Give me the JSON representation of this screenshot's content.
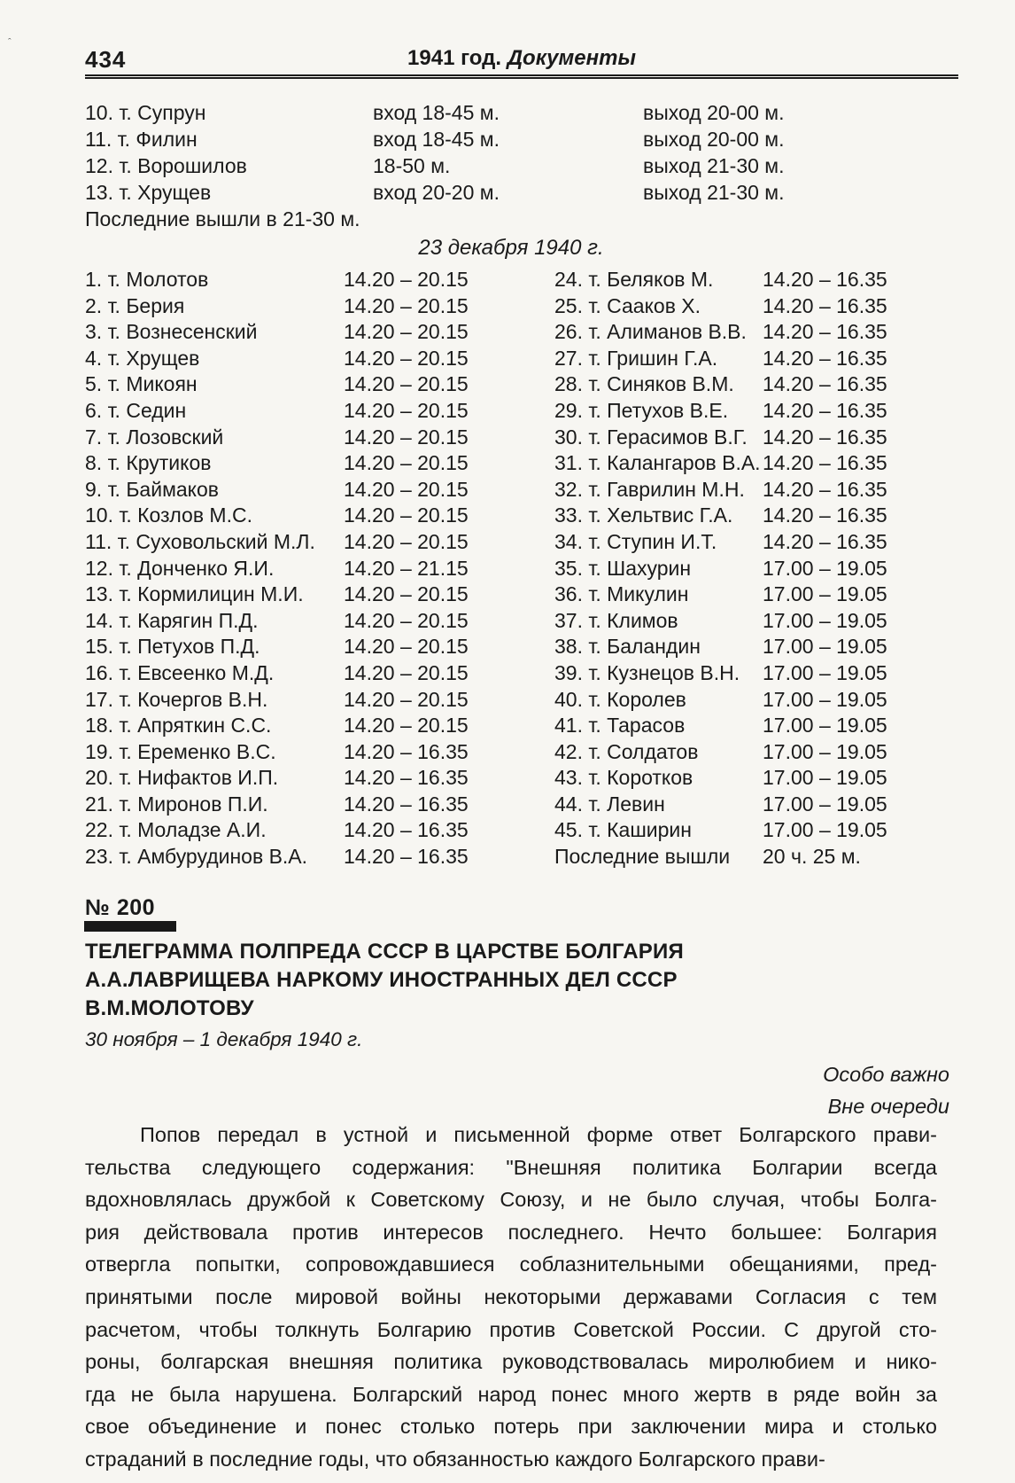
{
  "colors": {
    "paper": "#f7f6f2",
    "ink": "#1a1a1a",
    "bar": "#181818"
  },
  "corner_mark": "ˆ",
  "header": {
    "page_number": "434",
    "running_title_year": "1941 год.",
    "running_title_word": "Документы"
  },
  "session1": {
    "rows": [
      {
        "name": "10. т. Супрун",
        "in": "вход 18-45 м.",
        "out": "выход 20-00 м."
      },
      {
        "name": "11. т. Филин",
        "in": "вход 18-45 м.",
        "out": "выход 20-00 м."
      },
      {
        "name": "12. т. Ворошилов",
        "in": "18-50 м.",
        "out": "выход 21-30 м."
      },
      {
        "name": "13. т. Хрущев",
        "in": "вход 20-20 м.",
        "out": "выход 21-30 м."
      }
    ],
    "footer": "Последние вышли в 21-30 м."
  },
  "session2": {
    "date_heading": "23 декабря 1940 г.",
    "left_rows": [
      {
        "name": "1. т. Молотов",
        "time": "14.20 – 20.15"
      },
      {
        "name": "2. т. Берия",
        "time": "14.20 – 20.15"
      },
      {
        "name": "3. т. Вознесенский",
        "time": "14.20 – 20.15"
      },
      {
        "name": "4. т. Хрущев",
        "time": "14.20 – 20.15"
      },
      {
        "name": "5. т. Микоян",
        "time": "14.20 – 20.15"
      },
      {
        "name": "6. т. Седин",
        "time": "14.20 – 20.15"
      },
      {
        "name": "7. т. Лозовский",
        "time": "14.20 – 20.15"
      },
      {
        "name": "8. т. Крутиков",
        "time": "14.20 – 20.15"
      },
      {
        "name": "9. т. Баймаков",
        "time": "14.20 – 20.15"
      },
      {
        "name": "10. т. Козлов М.С.",
        "time": "14.20 – 20.15"
      },
      {
        "name": "11. т. Суховольский М.Л.",
        "time": "14.20 – 20.15"
      },
      {
        "name": "12. т. Донченко Я.И.",
        "time": "14.20 – 21.15"
      },
      {
        "name": "13. т. Кормилицин М.И.",
        "time": "14.20 – 20.15"
      },
      {
        "name": "14. т. Карягин П.Д.",
        "time": "14.20 – 20.15"
      },
      {
        "name": "15. т. Петухов П.Д.",
        "time": "14.20 – 20.15"
      },
      {
        "name": "16. т. Евсеенко М.Д.",
        "time": "14.20 – 20.15"
      },
      {
        "name": "17. т. Кочергов В.Н.",
        "time": "14.20 – 20.15"
      },
      {
        "name": "18. т. Апряткин С.С.",
        "time": "14.20 – 20.15"
      },
      {
        "name": "19. т. Еременко В.С.",
        "time": "14.20 – 16.35"
      },
      {
        "name": "20. т. Нифактов И.П.",
        "time": "14.20 – 16.35"
      },
      {
        "name": "21. т. Миронов П.И.",
        "time": "14.20 – 16.35"
      },
      {
        "name": "22. т. Моладзе А.И.",
        "time": "14.20 – 16.35"
      },
      {
        "name": "23. т. Амбурудинов В.А.",
        "time": "14.20 – 16.35"
      }
    ],
    "right_rows": [
      {
        "name": "24. т. Беляков М.",
        "time": "14.20 – 16.35"
      },
      {
        "name": "25. т. Сааков Х.",
        "time": "14.20 – 16.35"
      },
      {
        "name": "26. т. Алиманов В.В.",
        "time": "14.20 – 16.35"
      },
      {
        "name": "27. т. Гришин Г.А.",
        "time": "14.20 – 16.35"
      },
      {
        "name": "28. т. Синяков В.М.",
        "time": "14.20 – 16.35"
      },
      {
        "name": "29. т. Петухов В.Е.",
        "time": "14.20 – 16.35"
      },
      {
        "name": "30. т. Герасимов В.Г.",
        "time": "14.20 – 16.35"
      },
      {
        "name": "31. т. Калангаров В.А.",
        "time": "14.20 – 16.35"
      },
      {
        "name": "32. т. Гаврилин М.Н.",
        "time": "14.20 – 16.35"
      },
      {
        "name": "33. т. Хельтвис Г.А.",
        "time": "14.20 – 16.35"
      },
      {
        "name": "34. т. Ступин И.Т.",
        "time": "14.20 – 16.35"
      },
      {
        "name": "35. т. Шахурин",
        "time": "17.00 – 19.05"
      },
      {
        "name": "36. т. Микулин",
        "time": "17.00 – 19.05"
      },
      {
        "name": "37. т. Климов",
        "time": "17.00 – 19.05"
      },
      {
        "name": "38. т. Баландин",
        "time": "17.00 – 19.05"
      },
      {
        "name": "39. т. Кузнецов В.Н.",
        "time": "17.00 – 19.05"
      },
      {
        "name": "40. т. Королев",
        "time": "17.00 – 19.05"
      },
      {
        "name": "41. т. Тарасов",
        "time": "17.00 – 19.05"
      },
      {
        "name": "42. т. Солдатов",
        "time": "17.00 – 19.05"
      },
      {
        "name": "43. т. Коротков",
        "time": "17.00 – 19.05"
      },
      {
        "name": "44. т. Левин",
        "time": "17.00 – 19.05"
      },
      {
        "name": "45. т. Каширин",
        "time": "17.00 – 19.05"
      },
      {
        "name": "Последние вышли",
        "time": "20 ч. 25 м."
      }
    ]
  },
  "doc200": {
    "number": "№ 200",
    "title_lines": [
      "ТЕЛЕГРАММА ПОЛПРЕДА СССР В ЦАРСТВЕ  БОЛГАРИЯ",
      "А.А.ЛАВРИЩЕВА НАРКОМУ ИНОСТРАННЫХ ДЕЛ СССР",
      "В.М.МОЛОТОВУ"
    ],
    "date_line": "30 ноября – 1 декабря  1940 г.",
    "annotations": [
      "Особо важно",
      "Вне очереди"
    ],
    "body_lines": [
      "Попов передал в устной и письменной форме ответ Болгарского прави-",
      "тельства следующего содержания: \"Внешняя политика Болгарии всегда",
      "вдохновлялась дружбой к Советскому Союзу, и не было случая, чтобы Болга-",
      "рия действовала против интересов последнего. Нечто большее: Болгария",
      "отвергла попытки, сопровождавшиеся соблазнительными обещаниями, пред-",
      "принятыми после мировой войны некоторыми державами Согласия с тем",
      "расчетом, чтобы толкнуть Болгарию против Советской России. С другой сто-",
      "роны, болгарская внешняя политика руководствовалась миролюбием и нико-",
      "гда не была нарушена. Болгарский народ понес много жертв в ряде войн за",
      "свое объединение и понес столько потерь при заключении мира и столько",
      "страданий в последние годы, что обязанностью каждого Болгарского прави-"
    ]
  }
}
